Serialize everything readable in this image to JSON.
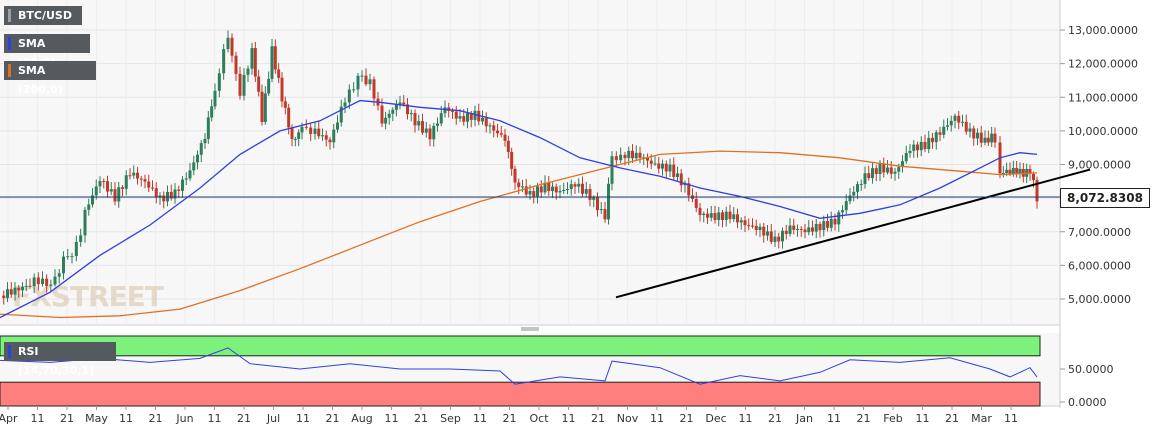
{
  "chart_data": {
    "type": "candlestick",
    "symbol": "BTC/USD",
    "indicators": [
      {
        "name": "SMA (50,0)",
        "color": "#2f3fe0"
      },
      {
        "name": "SMA (200,0)",
        "color": "#e07020"
      }
    ],
    "last_price_label": "8,072.8308",
    "last_price": 8072.83,
    "price_axis": {
      "ticks": [
        "5,000.0000",
        "6,000.0000",
        "7,000.0000",
        "8,000.0000",
        "9,000.0000",
        "10,000.0000",
        "11,000.0000",
        "12,000.0000",
        "13,000.0000"
      ],
      "range": [
        4300,
        13850
      ]
    },
    "x_ticks": [
      "Apr",
      "11",
      "21",
      "May",
      "11",
      "21",
      "Jun",
      "11",
      "21",
      "Jul",
      "11",
      "21",
      "Aug",
      "11",
      "21",
      "Sep",
      "11",
      "21",
      "Oct",
      "11",
      "21",
      "Nov",
      "11",
      "21",
      "Dec",
      "11",
      "21",
      "Jan",
      "11",
      "21",
      "Feb",
      "11",
      "21",
      "Mar",
      "11"
    ],
    "price_series": [
      {
        "x": 0,
        "close": 5100
      },
      {
        "x": 30,
        "close": 5300
      },
      {
        "x": 55,
        "close": 5700
      },
      {
        "x": 72,
        "close": 6300
      },
      {
        "x": 85,
        "close": 7600
      },
      {
        "x": 100,
        "close": 8500
      },
      {
        "x": 115,
        "close": 7900
      },
      {
        "x": 130,
        "close": 8600
      },
      {
        "x": 145,
        "close": 8300
      },
      {
        "x": 160,
        "close": 7800
      },
      {
        "x": 175,
        "close": 8000
      },
      {
        "x": 190,
        "close": 8700
      },
      {
        "x": 205,
        "close": 9800
      },
      {
        "x": 215,
        "close": 11000
      },
      {
        "x": 228,
        "close": 13000
      },
      {
        "x": 240,
        "close": 11200
      },
      {
        "x": 252,
        "close": 12200
      },
      {
        "x": 262,
        "close": 10500
      },
      {
        "x": 272,
        "close": 12500
      },
      {
        "x": 282,
        "close": 10800
      },
      {
        "x": 292,
        "close": 9700
      },
      {
        "x": 302,
        "close": 10300
      },
      {
        "x": 315,
        "close": 9800
      },
      {
        "x": 330,
        "close": 9500
      },
      {
        "x": 345,
        "close": 10800
      },
      {
        "x": 358,
        "close": 11800
      },
      {
        "x": 370,
        "close": 11300
      },
      {
        "x": 382,
        "close": 10100
      },
      {
        "x": 400,
        "close": 10700
      },
      {
        "x": 415,
        "close": 10100
      },
      {
        "x": 430,
        "close": 9700
      },
      {
        "x": 445,
        "close": 10600
      },
      {
        "x": 460,
        "close": 10300
      },
      {
        "x": 475,
        "close": 10500
      },
      {
        "x": 490,
        "close": 10200
      },
      {
        "x": 505,
        "close": 9900
      },
      {
        "x": 515,
        "close": 8300
      },
      {
        "x": 530,
        "close": 8000
      },
      {
        "x": 545,
        "close": 8300
      },
      {
        "x": 560,
        "close": 8200
      },
      {
        "x": 575,
        "close": 8500
      },
      {
        "x": 590,
        "close": 8200
      },
      {
        "x": 605,
        "close": 7600
      },
      {
        "x": 612,
        "close": 9400
      },
      {
        "x": 625,
        "close": 9200
      },
      {
        "x": 640,
        "close": 9100
      },
      {
        "x": 655,
        "close": 8800
      },
      {
        "x": 670,
        "close": 8700
      },
      {
        "x": 685,
        "close": 8200
      },
      {
        "x": 700,
        "close": 7400
      },
      {
        "x": 715,
        "close": 7400
      },
      {
        "x": 730,
        "close": 7500
      },
      {
        "x": 745,
        "close": 7300
      },
      {
        "x": 760,
        "close": 7200
      },
      {
        "x": 775,
        "close": 6900
      },
      {
        "x": 790,
        "close": 7300
      },
      {
        "x": 805,
        "close": 7200
      },
      {
        "x": 820,
        "close": 7300
      },
      {
        "x": 835,
        "close": 7400
      },
      {
        "x": 850,
        "close": 8100
      },
      {
        "x": 865,
        "close": 8600
      },
      {
        "x": 880,
        "close": 8800
      },
      {
        "x": 895,
        "close": 8600
      },
      {
        "x": 910,
        "close": 9300
      },
      {
        "x": 925,
        "close": 9400
      },
      {
        "x": 940,
        "close": 9800
      },
      {
        "x": 955,
        "close": 10300
      },
      {
        "x": 970,
        "close": 9900
      },
      {
        "x": 985,
        "close": 9700
      },
      {
        "x": 995,
        "close": 9600
      },
      {
        "x": 1000,
        "close": 8800
      },
      {
        "x": 1010,
        "close": 8600
      },
      {
        "x": 1020,
        "close": 8800
      },
      {
        "x": 1030,
        "close": 9000
      },
      {
        "x": 1037,
        "close": 8100
      }
    ],
    "sma50": [
      {
        "x": 0,
        "v": 4450
      },
      {
        "x": 50,
        "v": 5200
      },
      {
        "x": 100,
        "v": 6300
      },
      {
        "x": 150,
        "v": 7200
      },
      {
        "x": 200,
        "v": 8300
      },
      {
        "x": 240,
        "v": 9300
      },
      {
        "x": 280,
        "v": 10000
      },
      {
        "x": 320,
        "v": 10300
      },
      {
        "x": 360,
        "v": 10900
      },
      {
        "x": 380,
        "v": 10850
      },
      {
        "x": 420,
        "v": 10700
      },
      {
        "x": 460,
        "v": 10600
      },
      {
        "x": 500,
        "v": 10300
      },
      {
        "x": 540,
        "v": 9800
      },
      {
        "x": 580,
        "v": 9200
      },
      {
        "x": 620,
        "v": 8900
      },
      {
        "x": 660,
        "v": 8650
      },
      {
        "x": 700,
        "v": 8300
      },
      {
        "x": 740,
        "v": 8050
      },
      {
        "x": 780,
        "v": 7750
      },
      {
        "x": 820,
        "v": 7400
      },
      {
        "x": 860,
        "v": 7550
      },
      {
        "x": 900,
        "v": 7800
      },
      {
        "x": 940,
        "v": 8300
      },
      {
        "x": 980,
        "v": 8900
      },
      {
        "x": 1000,
        "v": 9200
      },
      {
        "x": 1020,
        "v": 9350
      },
      {
        "x": 1037,
        "v": 9300
      }
    ],
    "sma200": [
      {
        "x": 0,
        "v": 4550
      },
      {
        "x": 60,
        "v": 4450
      },
      {
        "x": 120,
        "v": 4500
      },
      {
        "x": 180,
        "v": 4700
      },
      {
        "x": 240,
        "v": 5250
      },
      {
        "x": 300,
        "v": 5900
      },
      {
        "x": 360,
        "v": 6600
      },
      {
        "x": 420,
        "v": 7300
      },
      {
        "x": 480,
        "v": 7900
      },
      {
        "x": 540,
        "v": 8400
      },
      {
        "x": 600,
        "v": 8850
      },
      {
        "x": 660,
        "v": 9300
      },
      {
        "x": 720,
        "v": 9400
      },
      {
        "x": 780,
        "v": 9350
      },
      {
        "x": 840,
        "v": 9200
      },
      {
        "x": 900,
        "v": 8950
      },
      {
        "x": 960,
        "v": 8800
      },
      {
        "x": 1000,
        "v": 8700
      },
      {
        "x": 1037,
        "v": 8750
      }
    ],
    "trendline": {
      "start": {
        "x": 616,
        "v": 5050
      },
      "end": {
        "x": 1090,
        "v": 8850
      }
    },
    "rsi": {
      "label": "RSI (14,70,30,1)",
      "ticks": [
        "50.0000",
        "0.0000"
      ],
      "overbought": 70,
      "oversold": 30,
      "values": [
        {
          "x": 0,
          "v": 63
        },
        {
          "x": 50,
          "v": 60
        },
        {
          "x": 100,
          "v": 66
        },
        {
          "x": 150,
          "v": 60
        },
        {
          "x": 200,
          "v": 66
        },
        {
          "x": 228,
          "v": 82
        },
        {
          "x": 250,
          "v": 58
        },
        {
          "x": 300,
          "v": 50
        },
        {
          "x": 350,
          "v": 58
        },
        {
          "x": 400,
          "v": 50
        },
        {
          "x": 450,
          "v": 50
        },
        {
          "x": 500,
          "v": 47
        },
        {
          "x": 515,
          "v": 27
        },
        {
          "x": 560,
          "v": 38
        },
        {
          "x": 605,
          "v": 32
        },
        {
          "x": 612,
          "v": 62
        },
        {
          "x": 660,
          "v": 52
        },
        {
          "x": 700,
          "v": 27
        },
        {
          "x": 740,
          "v": 40
        },
        {
          "x": 780,
          "v": 32
        },
        {
          "x": 820,
          "v": 45
        },
        {
          "x": 850,
          "v": 64
        },
        {
          "x": 900,
          "v": 60
        },
        {
          "x": 950,
          "v": 67
        },
        {
          "x": 990,
          "v": 50
        },
        {
          "x": 1010,
          "v": 38
        },
        {
          "x": 1030,
          "v": 52
        },
        {
          "x": 1037,
          "v": 38
        }
      ]
    }
  },
  "watermark": "FXSTREET"
}
